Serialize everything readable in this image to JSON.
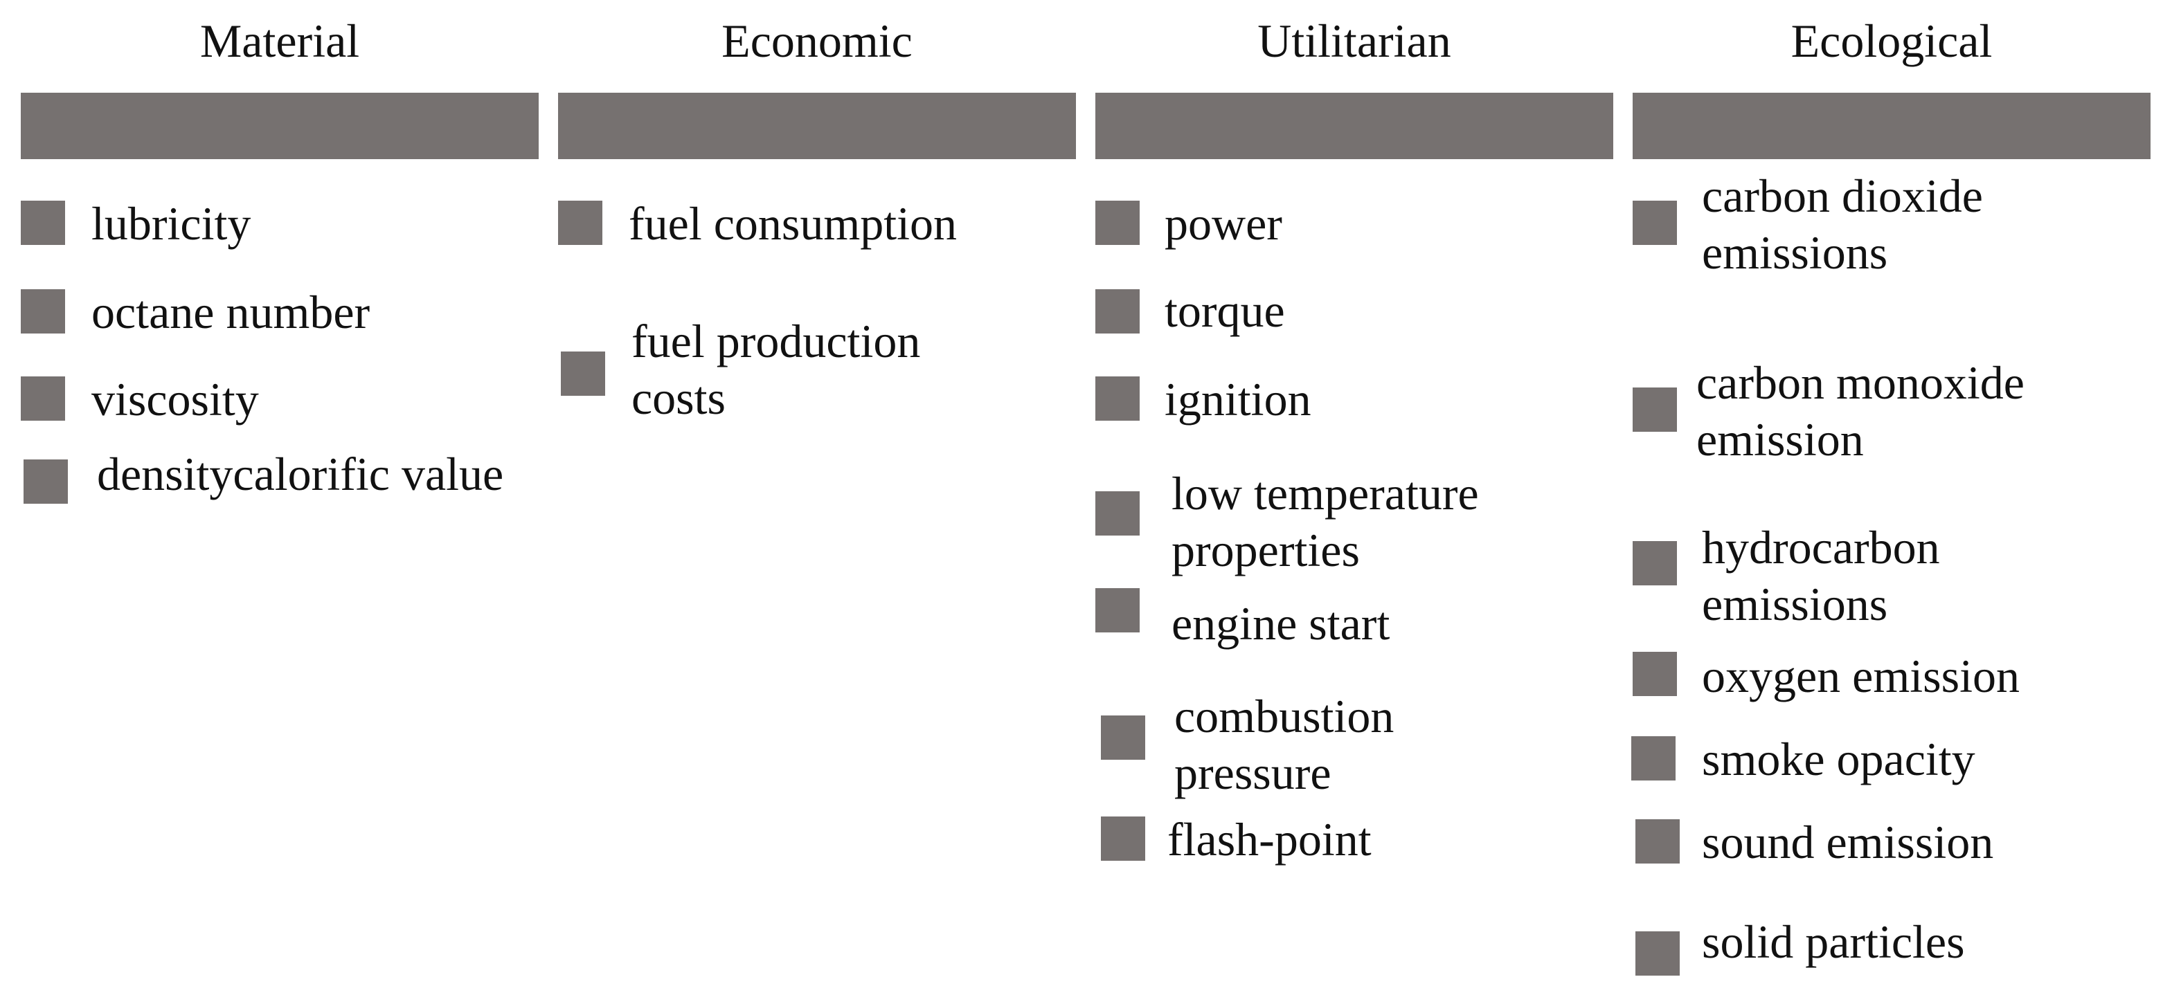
{
  "colors": {
    "bar": "#767170",
    "bullet": "#767170",
    "text": "#111111"
  },
  "columns": [
    {
      "title": "Material",
      "items": [
        {
          "text": "lubricity"
        },
        {
          "text": "octane number"
        },
        {
          "text": "viscosity"
        },
        {
          "text": "densitycalorific value"
        }
      ]
    },
    {
      "title": "Economic",
      "items": [
        {
          "text": "fuel consumption"
        },
        {
          "text": "fuel production costs"
        }
      ]
    },
    {
      "title": "Utilitarian",
      "items": [
        {
          "text": "power"
        },
        {
          "text": "torque"
        },
        {
          "text": "ignition"
        },
        {
          "text": "low temperature properties"
        },
        {
          "text": "engine start"
        },
        {
          "text": "combustion pressure"
        },
        {
          "text": "flash-point"
        }
      ]
    },
    {
      "title": "Ecological",
      "items": [
        {
          "text": "carbon dioxide emissions"
        },
        {
          "text": "carbon monoxide emission"
        },
        {
          "text": "hydrocarbon emissions"
        },
        {
          "text": "oxygen emission"
        },
        {
          "text": "smoke opacity"
        },
        {
          "text": "sound emission"
        },
        {
          "text": "solid particles"
        }
      ]
    }
  ]
}
